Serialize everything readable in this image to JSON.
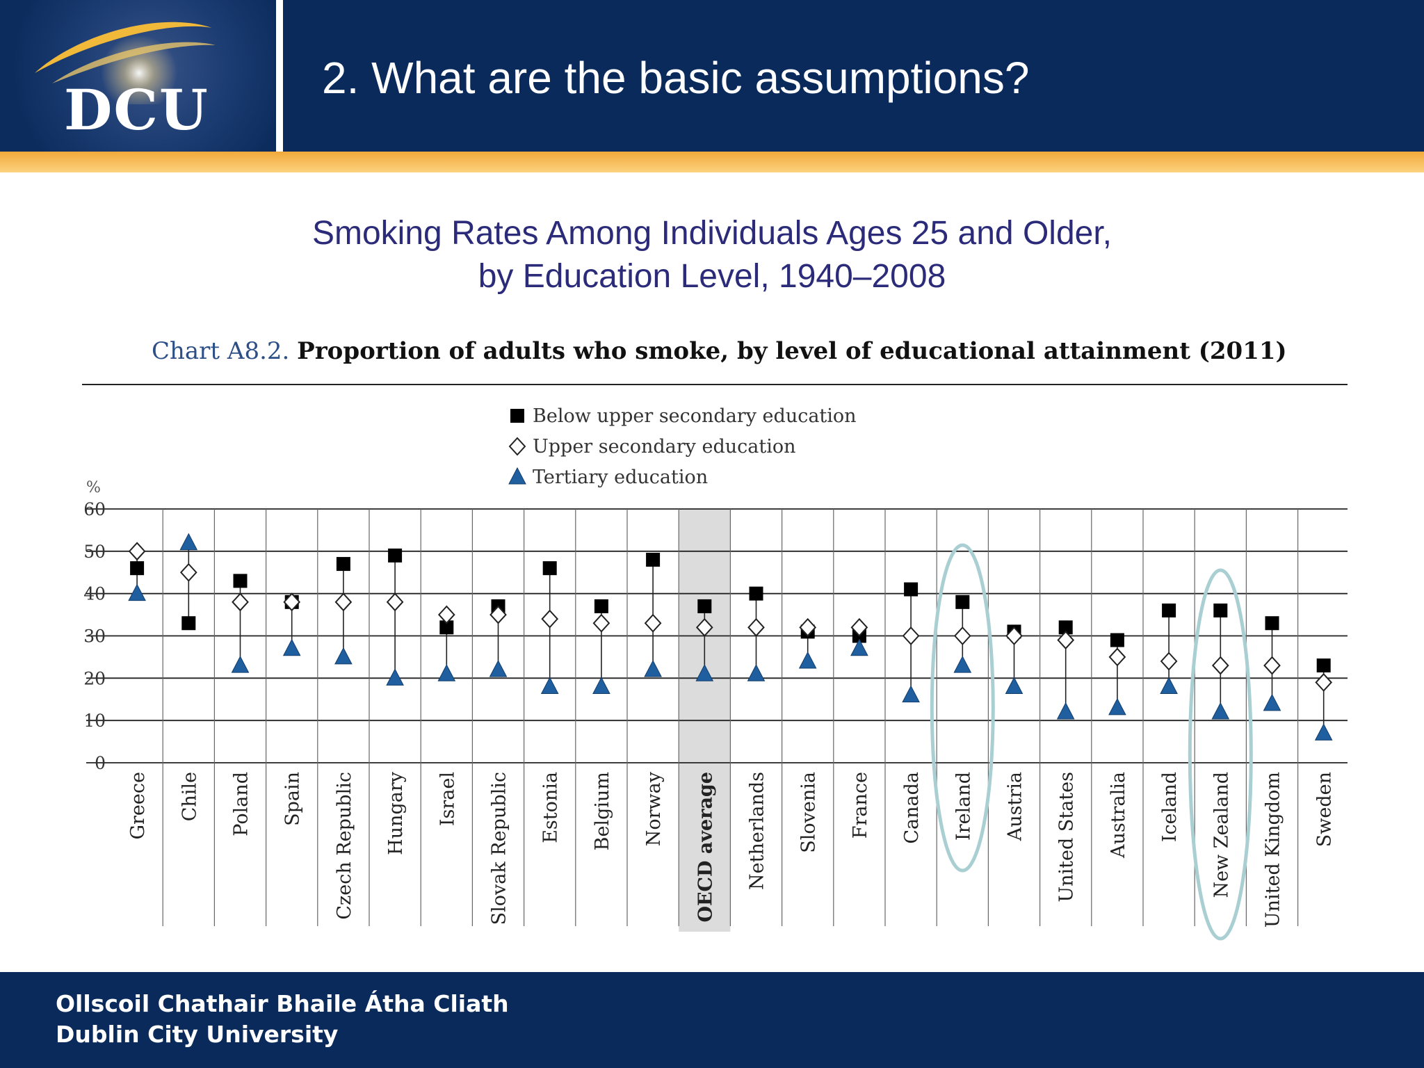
{
  "header": {
    "logo_text": "DCU",
    "title": "2. What are the basic assumptions?"
  },
  "subtitle": {
    "line1": "Smoking Rates Among Individuals Ages 25 and Older,",
    "line2": "by Education Level, 1940–2008"
  },
  "footer": {
    "line1": "Ollscoil Chathair Bhaile Átha Cliath",
    "line2": "Dublin City University"
  },
  "chart_data": {
    "type": "scatter",
    "label": "Chart A8.2.",
    "title": "Proportion of adults who smoke, by level of educational attainment (2011)",
    "ylabel": "%",
    "ylim": [
      0,
      60
    ],
    "yticks": [
      0,
      10,
      20,
      30,
      40,
      50,
      60
    ],
    "grid": true,
    "legend_position": "top-center",
    "categories": [
      "Greece",
      "Chile",
      "Poland",
      "Spain",
      "Czech Republic",
      "Hungary",
      "Israel",
      "Slovak Republic",
      "Estonia",
      "Belgium",
      "Norway",
      "OECD average",
      "Netherlands",
      "Slovenia",
      "France",
      "Canada",
      "Ireland",
      "Austria",
      "United States",
      "Australia",
      "Iceland",
      "New Zealand",
      "United Kingdom",
      "Sweden"
    ],
    "highlighted_category": "OECD average",
    "circled_categories": [
      "Ireland",
      "New Zealand"
    ],
    "series": [
      {
        "name": "Below upper secondary education",
        "marker": "square",
        "color": "#000000",
        "values": [
          46,
          33,
          43,
          38,
          47,
          49,
          32,
          37,
          46,
          37,
          48,
          37,
          40,
          31,
          30,
          41,
          38,
          31,
          32,
          29,
          36,
          36,
          33,
          23
        ]
      },
      {
        "name": "Upper secondary education",
        "marker": "diamond",
        "color": "#ffffff",
        "values": [
          50,
          45,
          38,
          38,
          38,
          38,
          35,
          35,
          34,
          33,
          33,
          32,
          32,
          32,
          32,
          30,
          30,
          30,
          29,
          25,
          24,
          23,
          23,
          19
        ]
      },
      {
        "name": "Tertiary education",
        "marker": "triangle",
        "color": "#1f5fa0",
        "values": [
          40,
          52,
          23,
          27,
          25,
          20,
          21,
          22,
          18,
          18,
          22,
          21,
          21,
          24,
          27,
          16,
          23,
          18,
          12,
          13,
          18,
          12,
          14,
          7
        ]
      }
    ]
  }
}
